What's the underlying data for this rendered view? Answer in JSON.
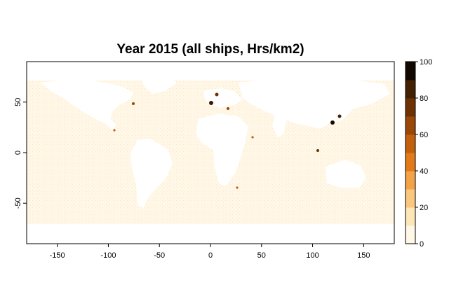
{
  "title": "Year 2015 (all ships, Hrs/km2)",
  "x_ticks": [
    "-150",
    "-100",
    "-50",
    "0",
    "50",
    "100",
    "150"
  ],
  "y_ticks": [
    "-50",
    "0",
    "50"
  ],
  "x_tick_values": [
    -150,
    -100,
    -50,
    0,
    50,
    100,
    150
  ],
  "y_tick_values": [
    -50,
    0,
    50
  ],
  "xlim": [
    -180,
    180
  ],
  "ylim": [
    -90,
    90
  ],
  "legend": {
    "ticks": [
      "0",
      "20",
      "40",
      "60",
      "80",
      "100"
    ],
    "tick_values": [
      0,
      20,
      40,
      60,
      80,
      100
    ],
    "range": [
      0,
      100
    ],
    "colors": [
      "#fff8e6",
      "#fde6b8",
      "#f9c77e",
      "#f2a347",
      "#e27a18",
      "#c2600c",
      "#9a4707",
      "#6e3104",
      "#442003",
      "#120801"
    ]
  },
  "colors": {
    "low": "#fde9c4",
    "mid": "#e8a25a",
    "high": "#1a0a02",
    "land": "#ffffff",
    "ocean_trace": "#fdf2dc"
  }
}
